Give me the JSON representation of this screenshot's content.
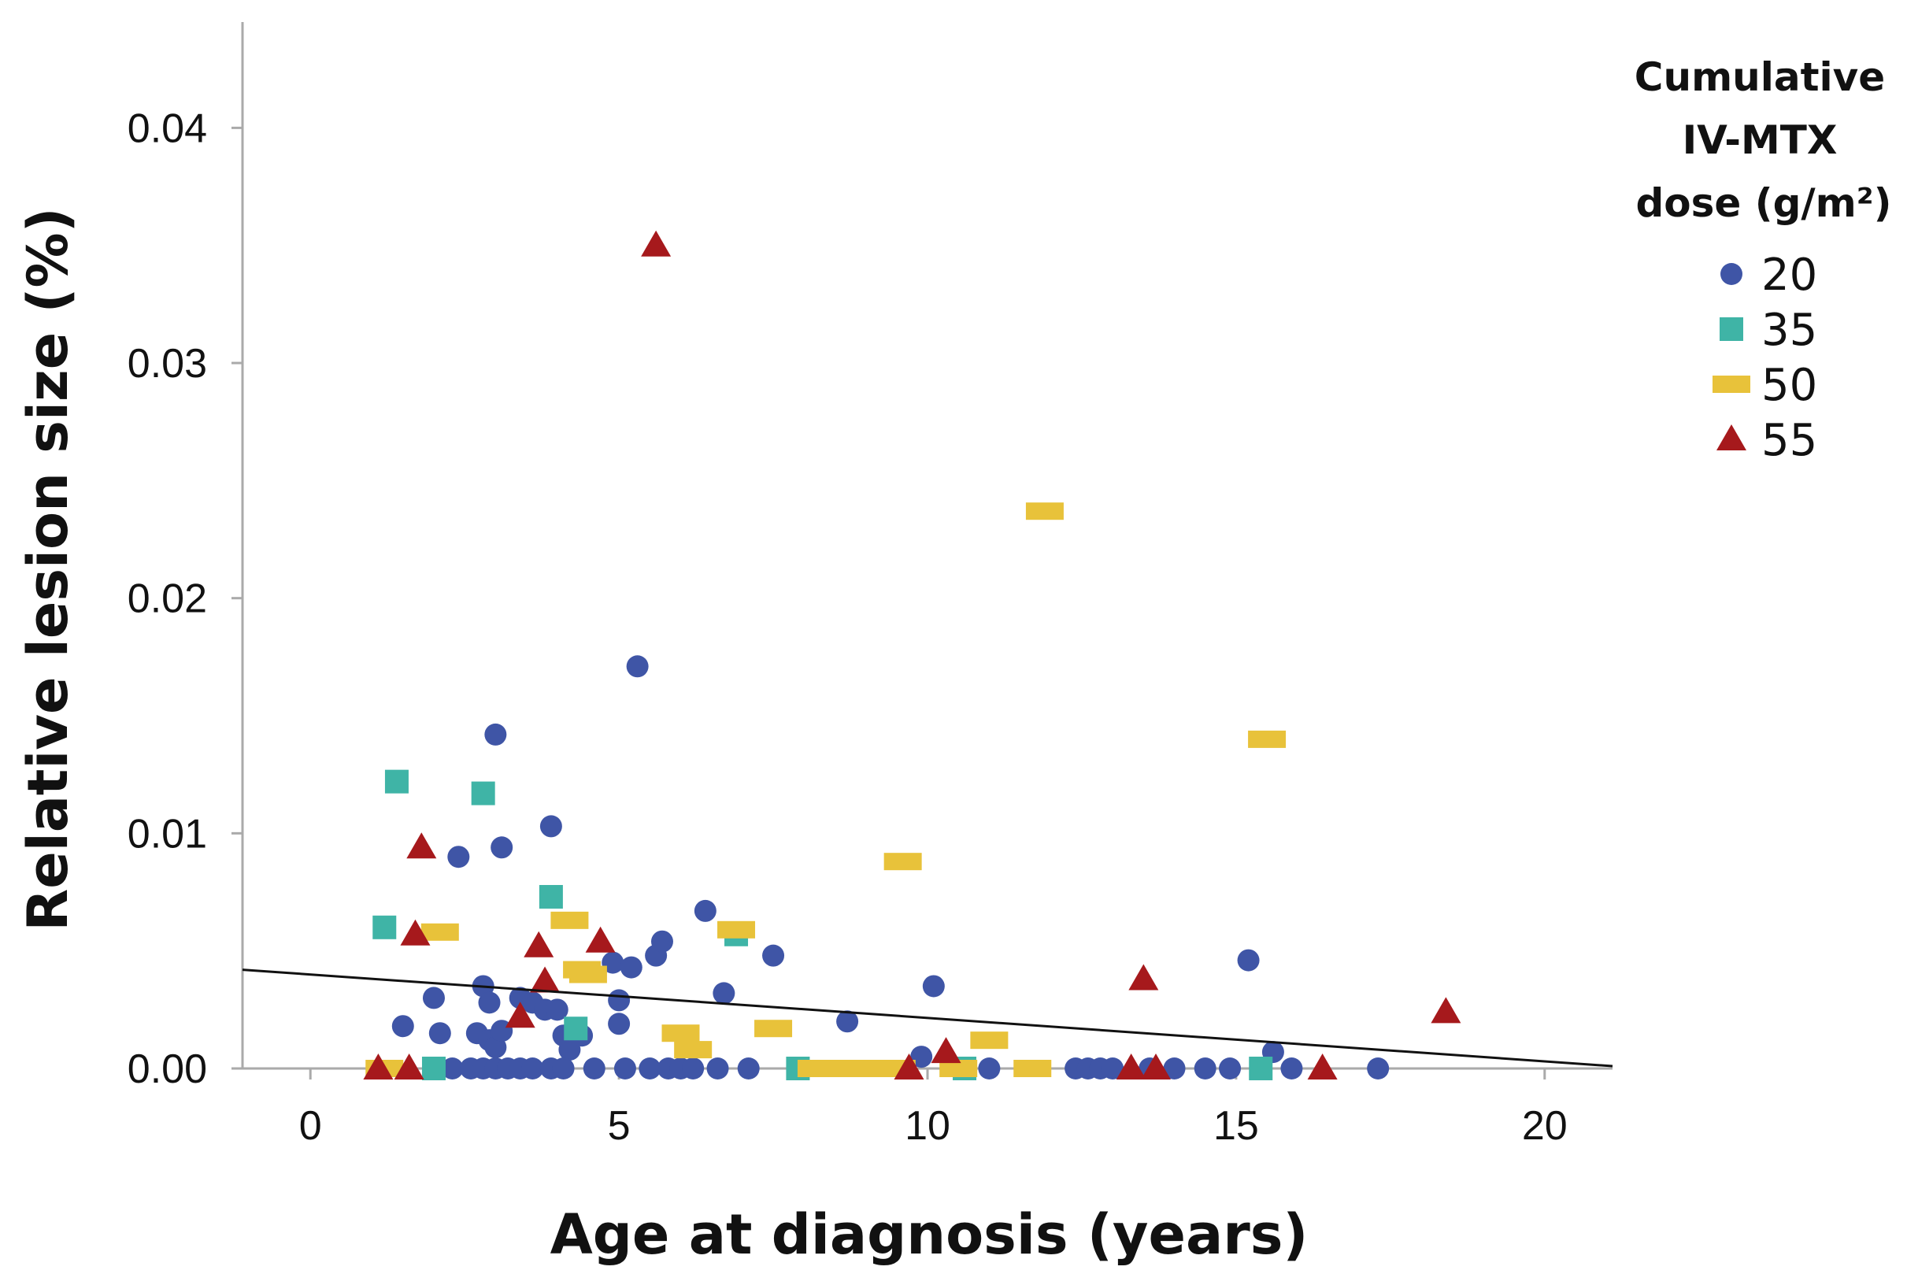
{
  "chart_data": {
    "type": "scatter",
    "title": "",
    "xlabel": "Age at diagnosis (years)",
    "ylabel": "Relative lesion size (%)",
    "xlim": [
      -1.1,
      21.1
    ],
    "ylim": [
      0,
      0.0445
    ],
    "xticks": [
      "0",
      "5",
      "10",
      "15",
      "20"
    ],
    "xtick_values": [
      0,
      5,
      10,
      15,
      20
    ],
    "yticks": [
      "0.00",
      "0.01",
      "0.02",
      "0.03",
      "0.04"
    ],
    "ytick_values": [
      0,
      0.01,
      0.02,
      0.03,
      0.04
    ],
    "grid": false,
    "legend_position": "top-right",
    "legend_title_lines": [
      "Cumulative",
      "IV-MTX",
      "dose (g/m²)"
    ],
    "colors": {
      "axis": "#aaaaaa",
      "trend": "#111111"
    },
    "trendline": {
      "x": [
        -1.1,
        21.1
      ],
      "y": [
        0.0042,
        0.0001
      ]
    },
    "series": [
      {
        "name": "20",
        "marker": "circle",
        "color": "#3f55a6",
        "points": [
          [
            1.5,
            0.0018
          ],
          [
            2.0,
            0.003
          ],
          [
            2.1,
            0.0015
          ],
          [
            2.4,
            0.009
          ],
          [
            2.7,
            0.0015
          ],
          [
            2.8,
            0.0035
          ],
          [
            2.9,
            0.0028
          ],
          [
            2.9,
            0.0012
          ],
          [
            3.0,
            0.0009
          ],
          [
            3.0,
            0.0142
          ],
          [
            3.1,
            0.0094
          ],
          [
            3.1,
            0.0016
          ],
          [
            3.4,
            0.003
          ],
          [
            3.6,
            0.0028
          ],
          [
            3.8,
            0.0025
          ],
          [
            3.9,
            0.0103
          ],
          [
            4.0,
            0.0025
          ],
          [
            4.1,
            0.0014
          ],
          [
            4.2,
            0.0008
          ],
          [
            4.4,
            0.0014
          ],
          [
            4.9,
            0.0045
          ],
          [
            5.0,
            0.0019
          ],
          [
            5.0,
            0.0029
          ],
          [
            5.2,
            0.0043
          ],
          [
            5.3,
            0.0171
          ],
          [
            5.6,
            0.0048
          ],
          [
            5.7,
            0.0054
          ],
          [
            6.4,
            0.0067
          ],
          [
            6.7,
            0.0032
          ],
          [
            7.5,
            0.0048
          ],
          [
            8.7,
            0.002
          ],
          [
            9.9,
            0.0005
          ],
          [
            10.1,
            0.0035
          ],
          [
            15.2,
            0.0046
          ],
          [
            15.6,
            0.0007
          ],
          [
            2.3,
            0.0
          ],
          [
            2.6,
            0.0
          ],
          [
            2.8,
            0.0
          ],
          [
            3.0,
            0.0
          ],
          [
            3.2,
            0.0
          ],
          [
            3.4,
            0.0
          ],
          [
            3.6,
            0.0
          ],
          [
            3.9,
            0.0
          ],
          [
            4.1,
            0.0
          ],
          [
            4.6,
            0.0
          ],
          [
            5.1,
            0.0
          ],
          [
            5.5,
            0.0
          ],
          [
            5.8,
            0.0
          ],
          [
            6.0,
            0.0
          ],
          [
            6.2,
            0.0
          ],
          [
            6.6,
            0.0
          ],
          [
            7.1,
            0.0
          ],
          [
            11.0,
            0.0
          ],
          [
            12.4,
            0.0
          ],
          [
            12.6,
            0.0
          ],
          [
            12.8,
            0.0
          ],
          [
            13.0,
            0.0
          ],
          [
            13.6,
            0.0
          ],
          [
            14.0,
            0.0
          ],
          [
            14.5,
            0.0
          ],
          [
            14.9,
            0.0
          ],
          [
            15.9,
            0.0
          ],
          [
            17.3,
            0.0
          ]
        ]
      },
      {
        "name": "35",
        "marker": "square",
        "color": "#3fb4a6",
        "points": [
          [
            1.2,
            0.006
          ],
          [
            1.4,
            0.0122
          ],
          [
            2.8,
            0.0117
          ],
          [
            3.9,
            0.0073
          ],
          [
            4.3,
            0.0017
          ],
          [
            6.9,
            0.0057
          ],
          [
            2.0,
            0.0
          ],
          [
            7.9,
            0.0
          ],
          [
            10.6,
            0.0
          ],
          [
            15.4,
            0.0
          ]
        ]
      },
      {
        "name": "50",
        "marker": "dash",
        "color": "#e8c23a",
        "points": [
          [
            2.1,
            0.0058
          ],
          [
            4.2,
            0.0063
          ],
          [
            4.4,
            0.0042
          ],
          [
            4.5,
            0.004
          ],
          [
            6.0,
            0.0015
          ],
          [
            6.2,
            0.0008
          ],
          [
            6.9,
            0.0059
          ],
          [
            7.5,
            0.0017
          ],
          [
            9.6,
            0.0088
          ],
          [
            11.0,
            0.0012
          ],
          [
            11.9,
            0.0237
          ],
          [
            15.5,
            0.014
          ],
          [
            1.2,
            0.0
          ],
          [
            8.2,
            0.0
          ],
          [
            8.6,
            0.0
          ],
          [
            9.1,
            0.0
          ],
          [
            9.5,
            0.0
          ],
          [
            10.5,
            0.0
          ],
          [
            11.7,
            0.0
          ]
        ]
      },
      {
        "name": "55",
        "marker": "triangle",
        "color": "#a6191c",
        "points": [
          [
            1.7,
            0.0057
          ],
          [
            1.8,
            0.0094
          ],
          [
            3.4,
            0.0022
          ],
          [
            3.7,
            0.0052
          ],
          [
            3.8,
            0.0037
          ],
          [
            4.7,
            0.0054
          ],
          [
            5.6,
            0.035
          ],
          [
            10.3,
            0.0007
          ],
          [
            13.5,
            0.0038
          ],
          [
            18.4,
            0.0024
          ],
          [
            1.1,
            0.0
          ],
          [
            1.6,
            0.0
          ],
          [
            9.7,
            0.0
          ],
          [
            13.3,
            0.0
          ],
          [
            13.7,
            0.0
          ],
          [
            16.4,
            0.0
          ]
        ]
      }
    ]
  }
}
